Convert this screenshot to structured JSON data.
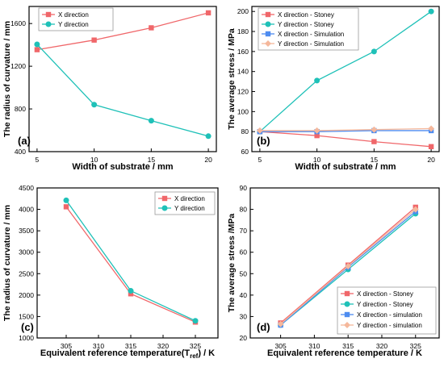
{
  "chart_data": [
    {
      "panel_label": "(a)",
      "type": "line",
      "x": [
        5,
        10,
        15,
        20
      ],
      "xticks": [
        "5",
        "10",
        "15",
        "20"
      ],
      "xlim": [
        4.3,
        20.7
      ],
      "yticks": [
        400,
        800,
        1200,
        1600
      ],
      "ylim": [
        400,
        1760
      ],
      "xlabel": "Width of substrate / mm",
      "ylabel": "The radius of curvature / mm",
      "legend_position": "top-left",
      "grid": false,
      "series": [
        {
          "name": "X direction",
          "values": [
            1355,
            1445,
            1560,
            1700
          ],
          "color": "#f0676a",
          "marker": "square"
        },
        {
          "name": "Y direction",
          "values": [
            1405,
            840,
            690,
            545
          ],
          "color": "#1fc1b8",
          "marker": "circle"
        }
      ]
    },
    {
      "panel_label": "(b)",
      "type": "line",
      "x": [
        5,
        10,
        15,
        20
      ],
      "xticks": [
        "5",
        "10",
        "15",
        "20"
      ],
      "xlim": [
        4.3,
        20.7
      ],
      "yticks": [
        60,
        80,
        100,
        120,
        140,
        160,
        180,
        200
      ],
      "ylim": [
        60,
        205
      ],
      "xlabel": "Width of substrate / mm",
      "ylabel": "The average stress / MPa",
      "legend_position": "top-left",
      "grid": false,
      "series": [
        {
          "name": "X direction - Stoney",
          "values": [
            80,
            76,
            70,
            65
          ],
          "color": "#f0676a",
          "marker": "square"
        },
        {
          "name": "Y direction - Stoney",
          "values": [
            80,
            131,
            160,
            200
          ],
          "color": "#1fc1b8",
          "marker": "circle"
        },
        {
          "name": "X direction - Simulation",
          "values": [
            80,
            80,
            81,
            81
          ],
          "color": "#4e8cf0",
          "marker": "square"
        },
        {
          "name": "Y direction - Simulation",
          "values": [
            81,
            81,
            82,
            83
          ],
          "color": "#f5b89c",
          "marker": "diamond"
        }
      ]
    },
    {
      "panel_label": "(c)",
      "type": "line",
      "x": [
        305,
        315,
        325
      ],
      "xticks": [
        "305",
        "310",
        "315",
        "320",
        "325"
      ],
      "xlim": [
        300.5,
        328.5
      ],
      "yticks": [
        1000,
        1500,
        2000,
        2500,
        3000,
        3500,
        4000,
        4500
      ],
      "ylim": [
        1000,
        4500
      ],
      "xlabel": "Equivalent reference temperature(T",
      "xlabel_sub": "ref",
      "xlabel_tail": ") / K",
      "ylabel": "The radius of curvature / mm",
      "legend_position": "top-right",
      "grid": false,
      "series": [
        {
          "name": "X direction",
          "values": [
            4060,
            2030,
            1370
          ],
          "color": "#f0676a",
          "marker": "square"
        },
        {
          "name": "Y direction",
          "values": [
            4210,
            2100,
            1400
          ],
          "color": "#1fc1b8",
          "marker": "circle"
        }
      ]
    },
    {
      "panel_label": "(d)",
      "type": "line",
      "x": [
        305,
        315,
        325
      ],
      "xticks": [
        "305",
        "310",
        "315",
        "320",
        "325"
      ],
      "xlim": [
        300.5,
        328.5
      ],
      "yticks": [
        20,
        30,
        40,
        50,
        60,
        70,
        80,
        90
      ],
      "ylim": [
        20,
        90
      ],
      "xlabel": "Equivalent reference temperature / K",
      "ylabel": "The average stress /MPa",
      "legend_position": "bottom-right",
      "grid": false,
      "series": [
        {
          "name": "X direction - Stoney",
          "values": [
            27,
            54,
            81
          ],
          "color": "#f0676a",
          "marker": "square"
        },
        {
          "name": "Y direction - Stoney",
          "values": [
            26,
            52,
            78
          ],
          "color": "#1fc1b8",
          "marker": "circle"
        },
        {
          "name": "X direction - simulation",
          "values": [
            26,
            53,
            79
          ],
          "color": "#4e8cf0",
          "marker": "square"
        },
        {
          "name": "Y direction - simulation",
          "values": [
            26.5,
            53.5,
            80
          ],
          "color": "#f5b89c",
          "marker": "diamond"
        }
      ]
    }
  ]
}
